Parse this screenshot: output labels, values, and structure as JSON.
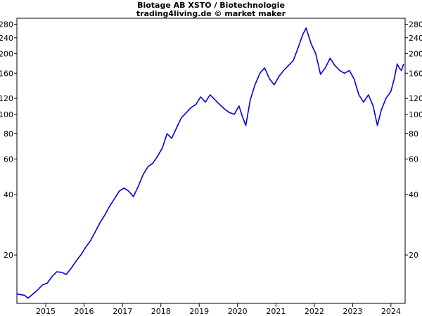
{
  "chart_data": {
    "type": "line",
    "title": "Biotage AB XSTO / Biotechnologie",
    "subtitle": "trading4living.de © market maker",
    "xlabel": "",
    "ylabel": "",
    "y_scale": "log",
    "ylim": [
      11.5,
      300
    ],
    "xlim": [
      "2014-04-01",
      "2024-05-15"
    ],
    "y_ticks": [
      20,
      40,
      60,
      80,
      100,
      120,
      160,
      200,
      240,
      280
    ],
    "x_ticks": [
      "2015",
      "2016",
      "2017",
      "2018",
      "2019",
      "2020",
      "2021",
      "2022",
      "2023",
      "2024"
    ],
    "grid": false,
    "legend": "none",
    "colors": {
      "line": "#0000e0",
      "axis": "#000000",
      "background": "#ffffff"
    },
    "series": [
      {
        "x": [
          "2014-04-01",
          "2014-06-15",
          "2014-07-15",
          "2014-09-01",
          "2014-10-15",
          "2014-12-01",
          "2015-01-15",
          "2015-03-01",
          "2015-04-15",
          "2015-06-01",
          "2015-07-15",
          "2015-09-01",
          "2015-10-15",
          "2015-12-01",
          "2016-01-15",
          "2016-03-01",
          "2016-04-15",
          "2016-06-01",
          "2016-07-15",
          "2016-09-01",
          "2016-10-15",
          "2016-12-01",
          "2017-01-15",
          "2017-03-01",
          "2017-04-15",
          "2017-06-01",
          "2017-07-15",
          "2017-09-01",
          "2017-10-15",
          "2017-12-01",
          "2018-01-15",
          "2018-03-01",
          "2018-04-15",
          "2018-06-01",
          "2018-07-15",
          "2018-09-01",
          "2018-10-15",
          "2018-12-01",
          "2019-01-15",
          "2019-03-01",
          "2019-04-15",
          "2019-06-01",
          "2019-07-15",
          "2019-09-01",
          "2019-10-15",
          "2019-12-01",
          "2020-01-15",
          "2020-02-15",
          "2020-03-20",
          "2020-05-01",
          "2020-06-15",
          "2020-08-01",
          "2020-09-15",
          "2020-11-01",
          "2020-12-15",
          "2021-02-01",
          "2021-03-15",
          "2021-05-01",
          "2021-06-15",
          "2021-08-01",
          "2021-09-15",
          "2021-10-15",
          "2021-12-01",
          "2022-01-15",
          "2022-03-01",
          "2022-04-15",
          "2022-06-01",
          "2022-07-15",
          "2022-09-01",
          "2022-10-15",
          "2022-12-01",
          "2023-01-15",
          "2023-03-01",
          "2023-04-15",
          "2023-06-01",
          "2023-07-15",
          "2023-08-25",
          "2023-10-01",
          "2023-11-15",
          "2024-01-01",
          "2024-02-01",
          "2024-03-01",
          "2024-03-20",
          "2024-04-10",
          "2024-05-01"
        ],
        "values": [
          12.8,
          12.6,
          12.2,
          12.8,
          13.4,
          14.2,
          14.5,
          15.6,
          16.5,
          16.4,
          16.0,
          17.2,
          18.6,
          20.0,
          21.8,
          23.5,
          26.0,
          29.0,
          31.5,
          35.0,
          38.0,
          41.5,
          43.0,
          41.5,
          39.0,
          44.0,
          50.0,
          55.0,
          57.0,
          62.0,
          68.0,
          80.0,
          76.0,
          86.0,
          96.0,
          102.0,
          108.0,
          112.0,
          122.0,
          115.0,
          125.0,
          118.0,
          112.0,
          106.0,
          102.0,
          100.0,
          110.0,
          98.0,
          88.0,
          118.0,
          140.0,
          160.0,
          170.0,
          150.0,
          140.0,
          155.0,
          165.0,
          175.0,
          185.0,
          215.0,
          250.0,
          268.0,
          225.0,
          200.0,
          158.0,
          170.0,
          190.0,
          175.0,
          165.0,
          160.0,
          165.0,
          150.0,
          125.0,
          115.0,
          125.0,
          110.0,
          88.0,
          105.0,
          120.0,
          130.0,
          150.0,
          178.0,
          170.0,
          165.0,
          178.0
        ]
      }
    ]
  }
}
